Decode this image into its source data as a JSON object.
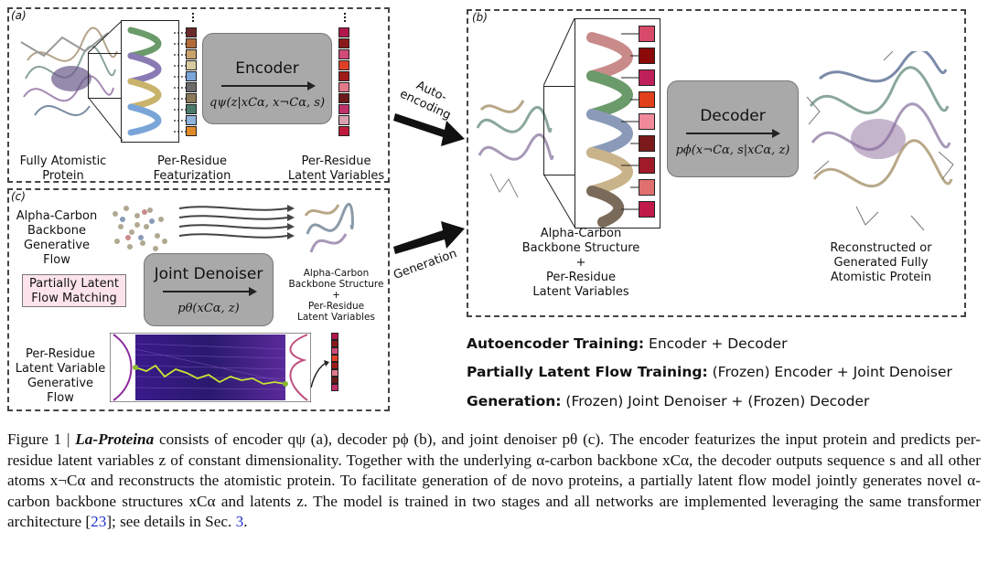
{
  "panels": {
    "a": {
      "label": "(a)",
      "encoder_title": "Encoder",
      "encoder_formula": "qψ(z|xCα, x¬Cα, s)",
      "protein_label": "Fully Atomistic Protein",
      "featurization_label": "Per-Residue Featurization",
      "latent_label": "Per-Residue Latent Variables"
    },
    "b": {
      "label": "(b)",
      "decoder_title": "Decoder",
      "decoder_formula": "pϕ(x¬Cα, s|xCα, z)",
      "backbone_label_1": "Alpha-Carbon",
      "backbone_label_2": "Backbone Structure",
      "plus": "+",
      "latent_label_1": "Per-Residue",
      "latent_label_2": "Latent Variables",
      "output_label_1": "Reconstructed or",
      "output_label_2": "Generated Fully",
      "output_label_3": "Atomistic Protein"
    },
    "c": {
      "label": "(c)",
      "flow_label_1": "Alpha-Carbon",
      "flow_label_2": "Backbone",
      "flow_label_3": "Generative Flow",
      "pink_label_1": "Partially Latent",
      "pink_label_2": "Flow Matching",
      "denoiser_title": "Joint Denoiser",
      "denoiser_formula": "pθ(xCα, z)",
      "out_label_1": "Alpha-Carbon",
      "out_label_2": "Backbone Structure",
      "out_plus": "+",
      "out_label_3": "Per-Residue",
      "out_label_4": "Latent Variables",
      "latent_flow_1": "Per-Residue",
      "latent_flow_2": "Latent Variable",
      "latent_flow_3": "Generative Flow"
    }
  },
  "arrows": {
    "autoencoding_1": "Auto-",
    "autoencoding_2": "encoding",
    "generation": "Generation"
  },
  "summary": {
    "line1_bold": "Autoencoder Training:",
    "line1_text": " Encoder + Decoder",
    "line2_bold": "Partially Latent Flow Training:",
    "line2_text": " (Frozen) Encoder + Joint Denoiser",
    "line3_bold": "Generation:",
    "line3_text": " (Frozen) Joint Denoiser + (Frozen) Decoder"
  },
  "caption": {
    "figure_prefix": "Figure 1 | ",
    "model_name": "La-Proteina",
    "text_1": " consists of encoder qψ (a), decoder pϕ (b), and joint denoiser pθ (c). The encoder featurizes the input protein and predicts per-residue latent variables z of constant dimensionality. Together with the underlying α-carbon backbone xCα, the decoder outputs sequence s and all other atoms x¬Cα and reconstructs the atomistic protein. To facilitate generation of de novo proteins, a partially latent flow model jointly generates novel α-carbon backbone structures xCα and latents z. The model is trained in two stages and all networks are implemented leveraging the same transformer architecture [",
    "ref": "23",
    "text_2": "]; see details in Sec. ",
    "sec": "3",
    "text_3": "."
  },
  "colors": {
    "box_gray": "#a9a9a9",
    "pink_box": "#fde4ec",
    "link_blue": "#2233cc",
    "flow_bg": "#2a1a6e",
    "flow_line": "#c8e632"
  },
  "latent_swatches_a_left": [
    "#6b2a2a",
    "#b36b3a",
    "#c9a26b",
    "#d8cba0",
    "#7aa5d8",
    "#6b6b6b",
    "#8a7a5a",
    "#4a7a6a",
    "#8fb3d9",
    "#e08a2a"
  ],
  "latent_swatches_a_right": [
    "#b0174a",
    "#8a1a1a",
    "#d04a7a",
    "#e0402a",
    "#a01a1a",
    "#e07a8a",
    "#6b1a1a",
    "#c0306a",
    "#d8a0b0",
    "#c01a3a"
  ],
  "latent_swatches_b": [
    "#d84a6a",
    "#8a0a0a",
    "#c0205a",
    "#e0401a",
    "#f08a9a",
    "#7a1a1a",
    "#a01a2a",
    "#e07070",
    "#c01a4a"
  ]
}
